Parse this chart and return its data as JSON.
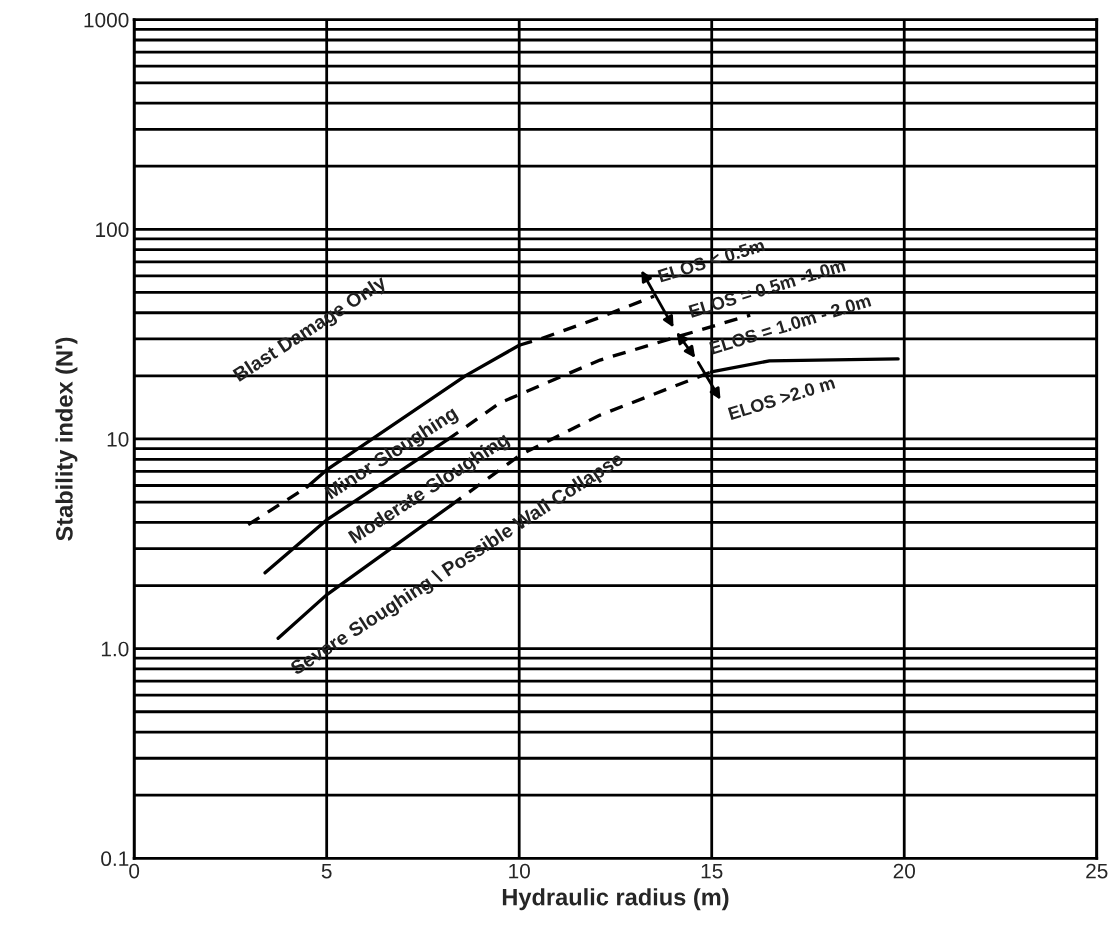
{
  "chart_data": {
    "type": "line",
    "xlabel": "Hydraulic radius (m)",
    "ylabel": "Stability index (N')",
    "series": [
      {
        "color": "#000000",
        "line_style": "dashed",
        "x": [
          2.96,
          4.49
        ],
        "values": [
          3.9,
          5.9
        ]
      },
      {
        "color": "#000000",
        "line_style": "solid",
        "x": [
          4.49,
          4.99,
          8.6,
          10
        ],
        "values": [
          5.9,
          7.1,
          20,
          28
        ]
      },
      {
        "color": "#000000",
        "line_style": "dashed",
        "x": [
          10,
          10.55,
          12.1,
          13.5
        ],
        "values": [
          28,
          30,
          38,
          48
        ]
      },
      {
        "color": "#000000",
        "line_style": "solid",
        "x": [
          3.4,
          4.99,
          8.13
        ],
        "values": [
          2.3,
          4.1,
          9.9
        ]
      },
      {
        "color": "#000000",
        "line_style": "dashed",
        "x": [
          8.13,
          9.51,
          12.1,
          14.18,
          16.0
        ],
        "values": [
          9.9,
          14.9,
          23.8,
          31,
          39
        ]
      },
      {
        "color": "#000000",
        "line_style": "solid",
        "x": [
          3.74,
          4.99,
          8.21
        ],
        "values": [
          1.12,
          1.8,
          4.8
        ]
      },
      {
        "color": "#000000",
        "line_style": "dashed",
        "x": [
          8.21,
          10.03,
          12.1,
          14.99
        ],
        "values": [
          4.8,
          8.4,
          13,
          20.9
        ]
      },
      {
        "color": "#000000",
        "line_style": "solid",
        "x": [
          14.99,
          16.5,
          19.84
        ],
        "values": [
          20.9,
          23.6,
          24.1
        ]
      }
    ],
    "annotations": [
      "Blast Damage Only",
      "Minor Sloughing",
      "Moderate Sloughing",
      "Severe Sloughing \\ Possible Wall Collapse",
      "ELOS < 0.5m",
      "ELOS = 0.5m -1.0m",
      "ELOS = 1.0m - 2.0m",
      "ELOS >2.0 m"
    ],
    "log": "y",
    "xlim": [
      0,
      25
    ],
    "ylim": [
      0.1,
      1000
    ],
    "xticks": [
      0,
      5,
      10,
      15,
      20,
      25
    ],
    "yticks": [
      0.1,
      {
        "value": 1,
        "label": "1.0"
      },
      10,
      100,
      1000
    ],
    "grid": true,
    "legend": false,
    "marker": "none"
  }
}
